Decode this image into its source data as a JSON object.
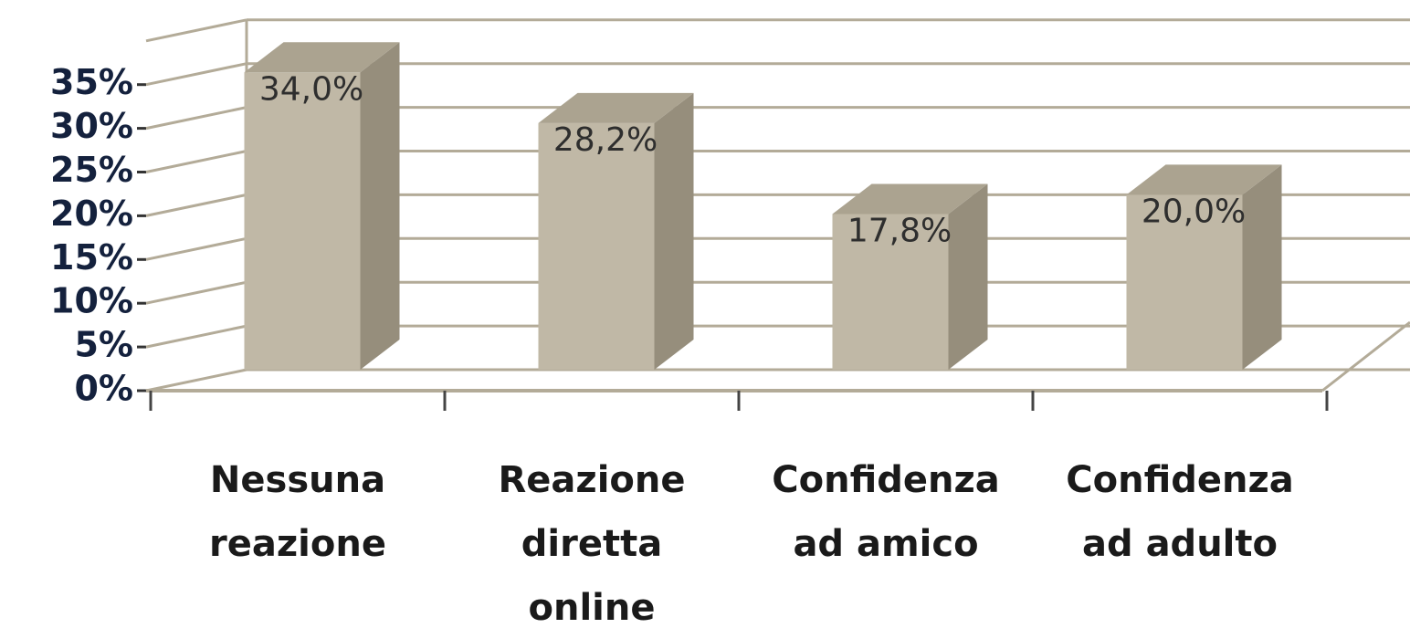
{
  "chart_data": {
    "type": "bar3d",
    "categories": [
      [
        "Nessuna",
        "reazione"
      ],
      [
        "Reazione",
        "diretta",
        "online"
      ],
      [
        "Confidenza",
        "ad amico"
      ],
      [
        "Confidenza",
        "ad adulto"
      ]
    ],
    "values": [
      34.0,
      28.2,
      17.8,
      20.0
    ],
    "value_labels": [
      "34,0%",
      "28,2%",
      "17,8%",
      "20,0%"
    ],
    "color": "#c0b8a6",
    "ylim": [
      0,
      40
    ],
    "yticks": [
      {
        "value": 0,
        "label": "0%"
      },
      {
        "value": 5,
        "label": "5%"
      },
      {
        "value": 10,
        "label": "10%"
      },
      {
        "value": 15,
        "label": "15%"
      },
      {
        "value": 20,
        "label": "20%"
      },
      {
        "value": 25,
        "label": "25%"
      },
      {
        "value": 30,
        "label": "30%"
      },
      {
        "value": 35,
        "label": "35%"
      }
    ],
    "grid": true
  }
}
